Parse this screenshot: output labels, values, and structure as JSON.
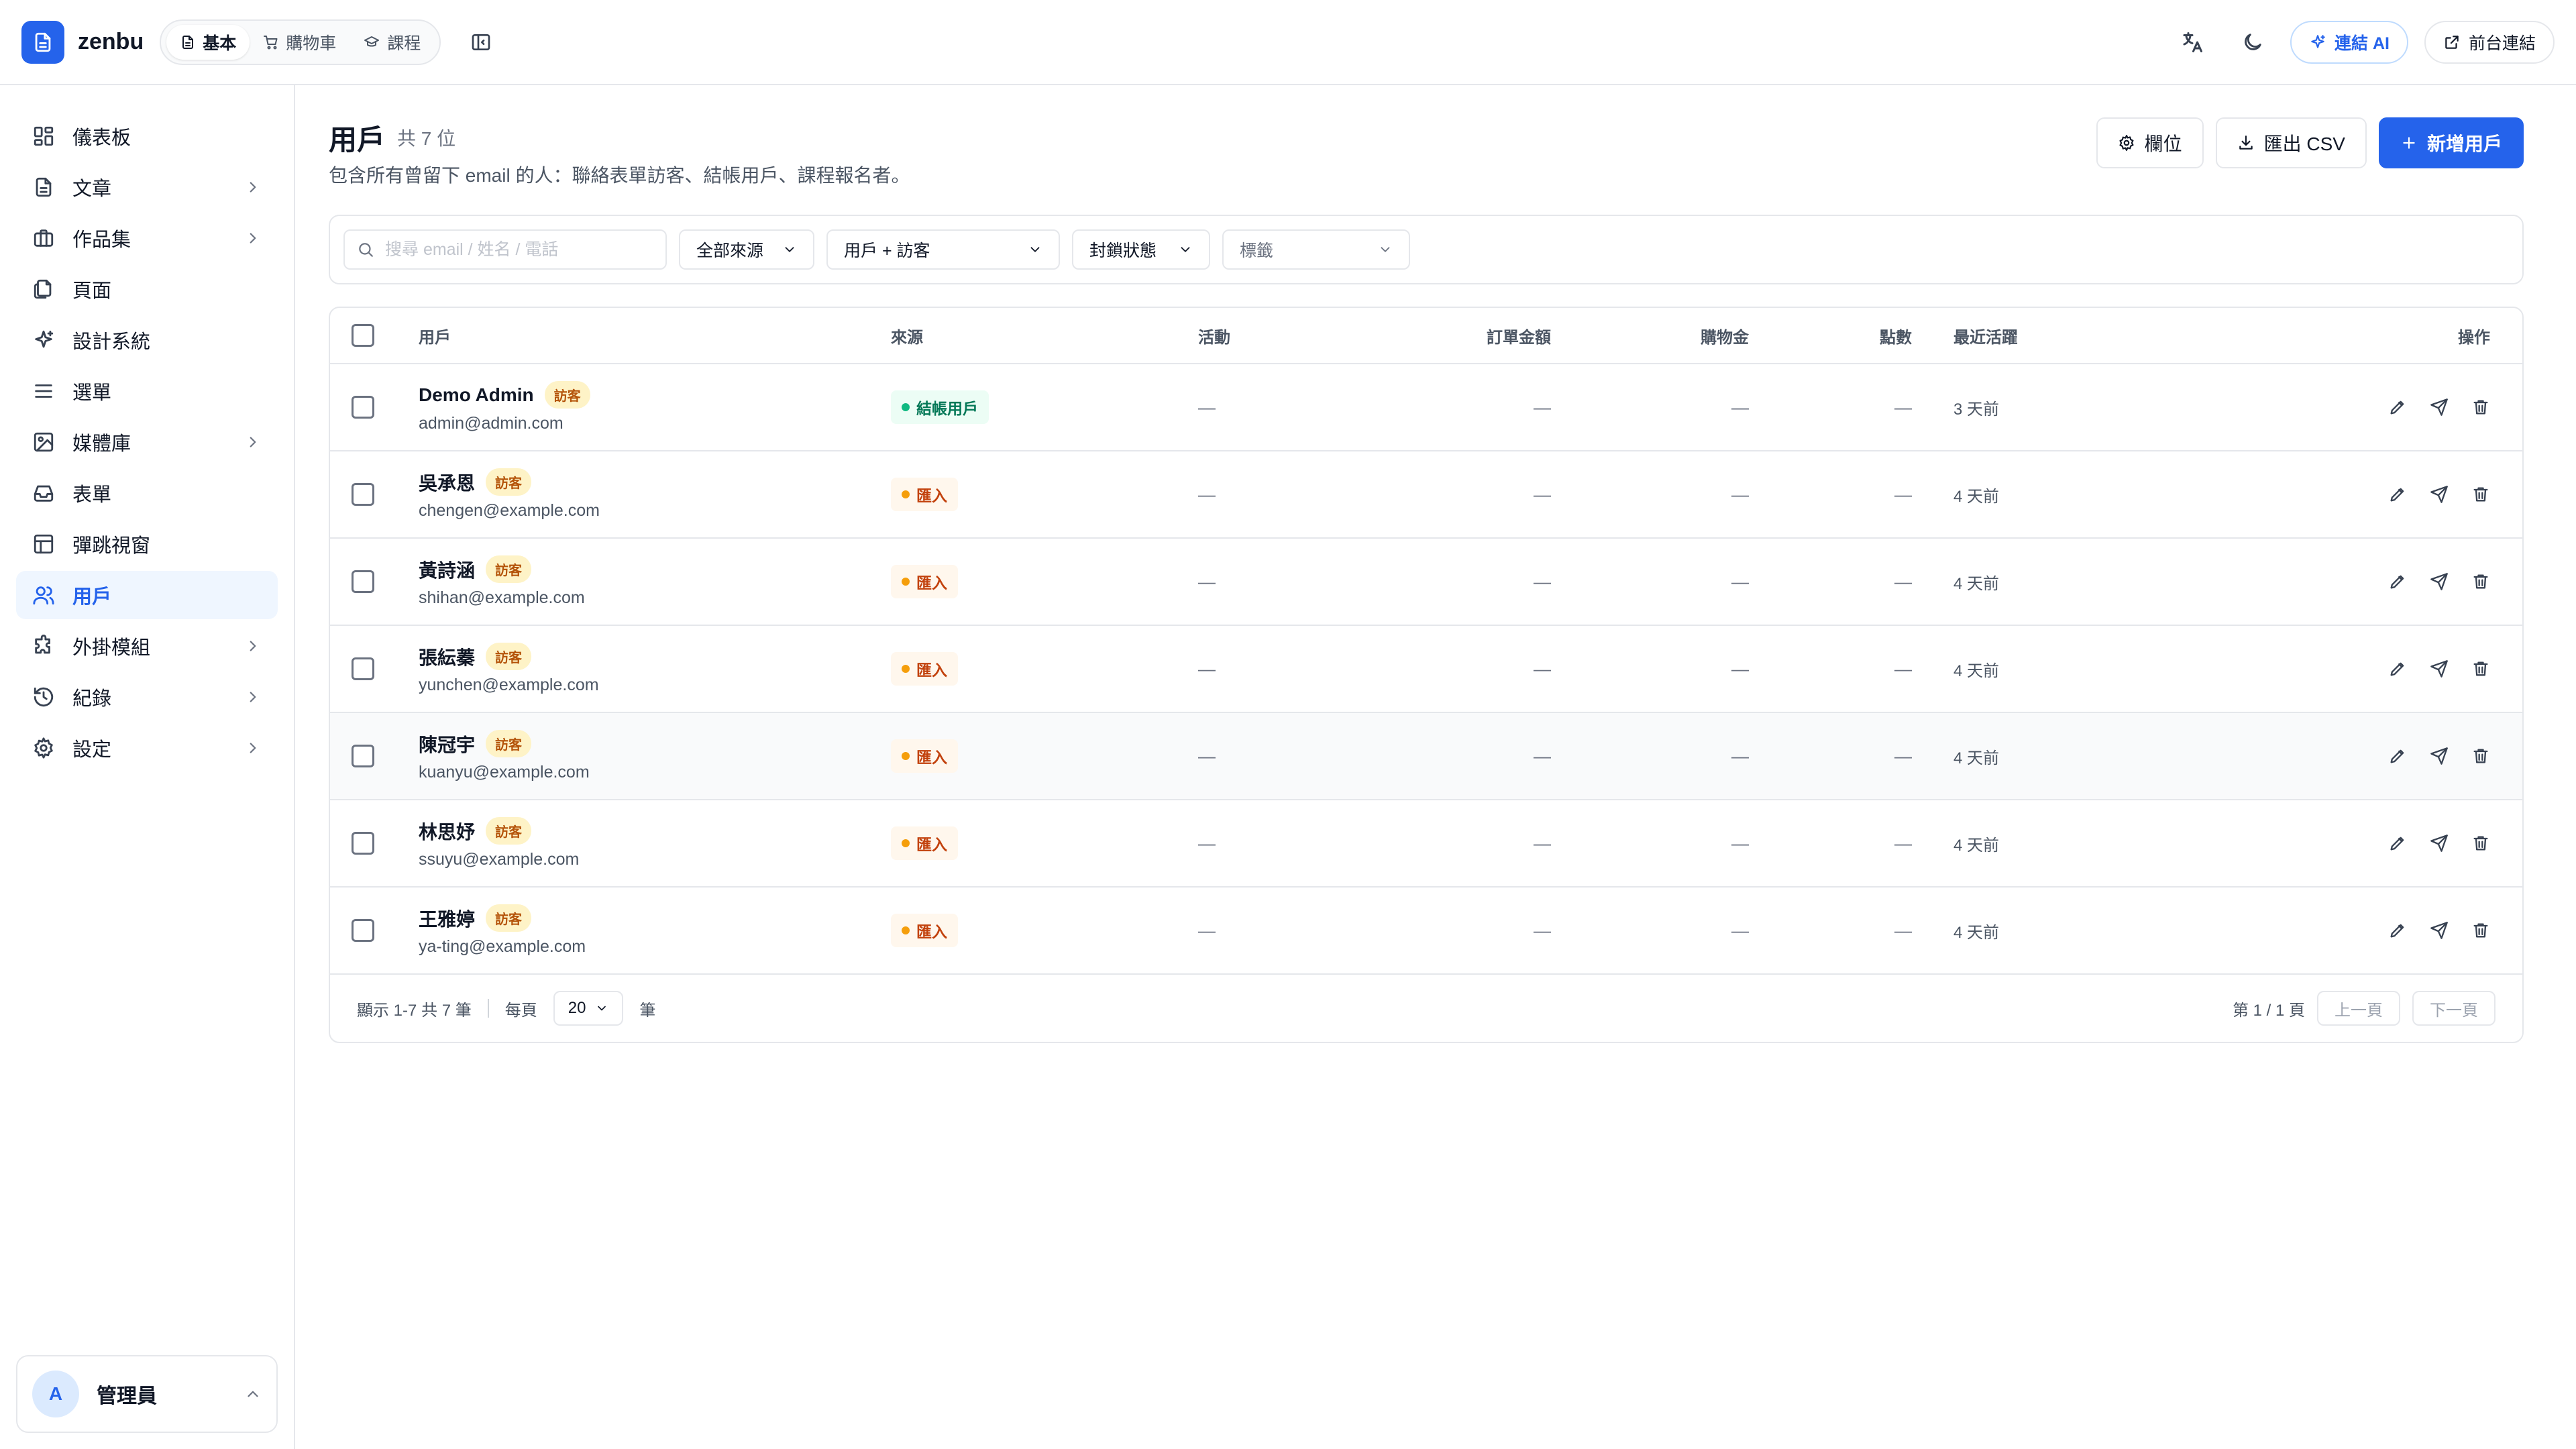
{
  "app": {
    "name": "zenbu"
  },
  "modes": [
    {
      "label": "基本",
      "icon": "document-icon",
      "active": true
    },
    {
      "label": "購物車",
      "icon": "cart-icon",
      "active": false
    },
    {
      "label": "課程",
      "icon": "graduation-cap-icon",
      "active": false
    }
  ],
  "topbar": {
    "ai_label": "連結 AI",
    "frontend_label": "前台連結"
  },
  "sidebar": {
    "items": [
      {
        "label": "儀表板",
        "icon": "dashboard-icon"
      },
      {
        "label": "文章",
        "icon": "document-icon",
        "has_children": true
      },
      {
        "label": "作品集",
        "icon": "briefcase-icon",
        "has_children": true
      },
      {
        "label": "頁面",
        "icon": "pages-icon"
      },
      {
        "label": "設計系統",
        "icon": "sparkle-icon"
      },
      {
        "label": "選單",
        "icon": "menu-icon"
      },
      {
        "label": "媒體庫",
        "icon": "image-icon",
        "has_children": true
      },
      {
        "label": "表單",
        "icon": "inbox-icon"
      },
      {
        "label": "彈跳視窗",
        "icon": "layout-icon"
      },
      {
        "label": "用戶",
        "icon": "users-icon",
        "active": true
      },
      {
        "label": "外掛模組",
        "icon": "puzzle-icon",
        "has_children": true
      },
      {
        "label": "紀錄",
        "icon": "history-icon",
        "has_children": true
      },
      {
        "label": "設定",
        "icon": "gear-icon",
        "has_children": true
      }
    ],
    "user": {
      "initial": "A",
      "name": "管理員"
    }
  },
  "page": {
    "title": "用戶",
    "count": "共 7 位",
    "description": "包含所有曾留下 email 的人：聯絡表單訪客、結帳用戶、課程報名者。",
    "columns_button": "欄位",
    "export_button": "匯出 CSV",
    "add_button": "新增用戶"
  },
  "filters": {
    "search_placeholder": "搜尋 email / 姓名 / 電話",
    "source": "全部來源",
    "type": "用戶 + 訪客",
    "block_status": "封鎖狀態",
    "tags": "標籤"
  },
  "table": {
    "headers": {
      "user": "用戶",
      "source": "來源",
      "activity": "活動",
      "order_total": "訂單金額",
      "shopping_credit": "購物金",
      "points": "點數",
      "last_active": "最近活躍",
      "actions": "操作"
    },
    "rows": [
      {
        "name": "Demo Admin",
        "badge": "訪客",
        "email": "admin@admin.com",
        "source": "結帳用戶",
        "source_type": "member",
        "activity": "—",
        "order_total": "—",
        "shopping_credit": "—",
        "points": "—",
        "last_active": "3 天前"
      },
      {
        "name": "吳承恩",
        "badge": "訪客",
        "email": "chengen@example.com",
        "source": "匯入",
        "source_type": "import",
        "activity": "—",
        "order_total": "—",
        "shopping_credit": "—",
        "points": "—",
        "last_active": "4 天前"
      },
      {
        "name": "黃詩涵",
        "badge": "訪客",
        "email": "shihan@example.com",
        "source": "匯入",
        "source_type": "import",
        "activity": "—",
        "order_total": "—",
        "shopping_credit": "—",
        "points": "—",
        "last_active": "4 天前"
      },
      {
        "name": "張紜蓁",
        "badge": "訪客",
        "email": "yunchen@example.com",
        "source": "匯入",
        "source_type": "import",
        "activity": "—",
        "order_total": "—",
        "shopping_credit": "—",
        "points": "—",
        "last_active": "4 天前"
      },
      {
        "name": "陳冠宇",
        "badge": "訪客",
        "email": "kuanyu@example.com",
        "source": "匯入",
        "source_type": "import",
        "activity": "—",
        "order_total": "—",
        "shopping_credit": "—",
        "points": "—",
        "last_active": "4 天前",
        "hovered": true
      },
      {
        "name": "林思妤",
        "badge": "訪客",
        "email": "ssuyu@example.com",
        "source": "匯入",
        "source_type": "import",
        "activity": "—",
        "order_total": "—",
        "shopping_credit": "—",
        "points": "—",
        "last_active": "4 天前"
      },
      {
        "name": "王雅婷",
        "badge": "訪客",
        "email": "ya-ting@example.com",
        "source": "匯入",
        "source_type": "import",
        "activity": "—",
        "order_total": "—",
        "shopping_credit": "—",
        "points": "—",
        "last_active": "4 天前"
      }
    ]
  },
  "footer": {
    "showing": "顯示 1-7 共 7 筆",
    "per_page_label": "每頁",
    "per_page_value": "20",
    "per_page_unit": "筆",
    "page_info": "第 1 / 1 頁",
    "prev": "上一頁",
    "next": "下一頁"
  },
  "colors": {
    "primary": "#2563eb",
    "member": "#10b981",
    "import": "#f59e0b",
    "guest_badge_bg": "#fef3c7"
  }
}
